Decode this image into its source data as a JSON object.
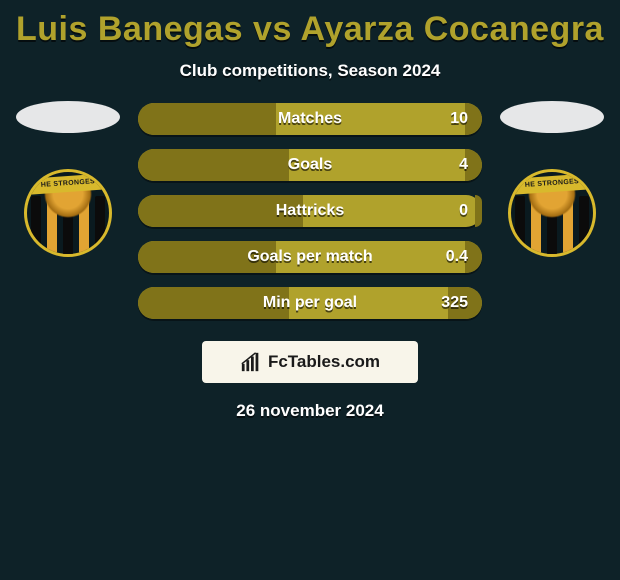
{
  "title": {
    "text": "Luis Banegas vs Ayarza Cocanegra",
    "color": "#b0a22c",
    "fontsize": 34,
    "fontweight": 900
  },
  "subtitle": {
    "text": "Club competitions, Season 2024",
    "color": "#ffffff",
    "fontsize": 17
  },
  "background_color": "#0e2228",
  "bar_style": {
    "track_color": "#b0a22c",
    "fill_left_color": "#807319",
    "fill_right_color": "#807319",
    "height": 32,
    "radius": 16,
    "label_fontsize": 16,
    "value_fontsize": 16,
    "text_color": "#ffffff"
  },
  "stats": [
    {
      "label": "Matches",
      "left_pct": 40,
      "right_pct": 5,
      "right_value": "10"
    },
    {
      "label": "Goals",
      "left_pct": 44,
      "right_pct": 5,
      "right_value": "4"
    },
    {
      "label": "Hattricks",
      "left_pct": 48,
      "right_pct": 2,
      "right_value": "0"
    },
    {
      "label": "Goals per match",
      "left_pct": 40,
      "right_pct": 5,
      "right_value": "0.4"
    },
    {
      "label": "Min per goal",
      "left_pct": 44,
      "right_pct": 10,
      "right_value": "325"
    }
  ],
  "left_player": {
    "placeholder_color": "#e6e7e8",
    "badge": {
      "band_text": "HE STRONGES",
      "band_bg": "#d8b92c",
      "ring_color": "#d8b92c",
      "stripe_gold": "#e2a433",
      "stripe_black": "#0b0b0b"
    }
  },
  "right_player": {
    "placeholder_color": "#e6e7e8",
    "badge": {
      "band_text": "HE STRONGES",
      "band_bg": "#d8b92c",
      "ring_color": "#d8b92c",
      "stripe_gold": "#e2a433",
      "stripe_black": "#0b0b0b"
    }
  },
  "brand": {
    "text": "FcTables.com",
    "box_bg": "#f8f5ea",
    "text_color": "#1a1a1a",
    "icon_color": "#1a1a1a"
  },
  "datestamp": "26 november 2024"
}
